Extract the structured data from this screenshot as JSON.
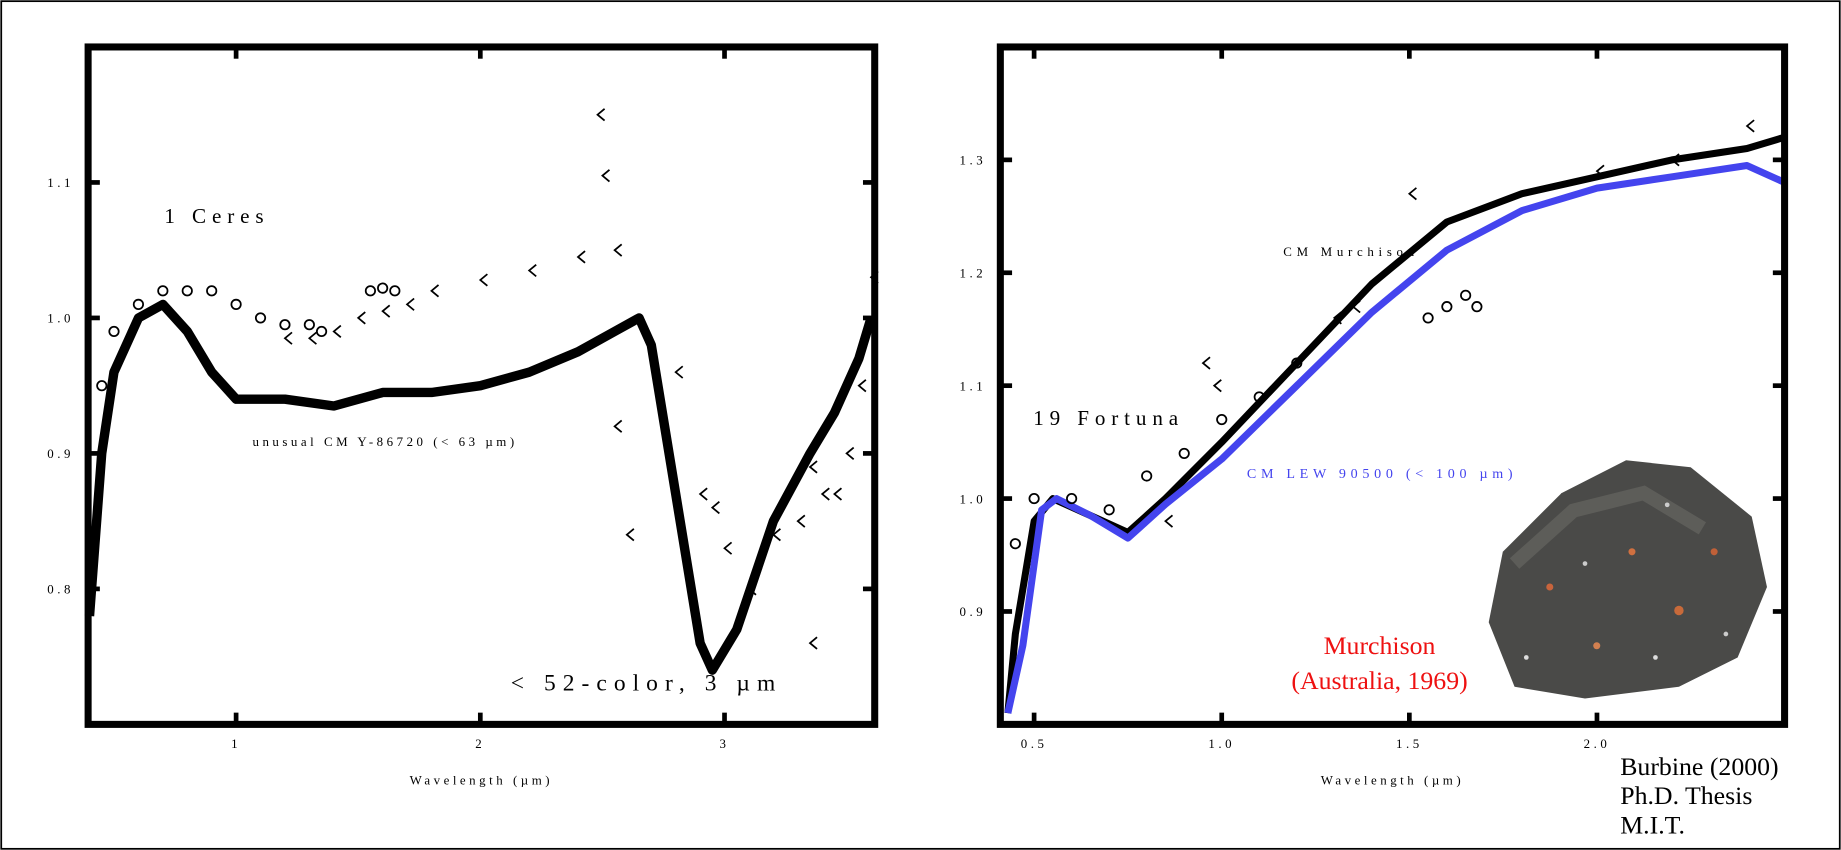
{
  "chart_data": [
    {
      "type": "line",
      "xlabel": "Wavelength (µm)",
      "xlim": [
        0.394,
        3.615
      ],
      "ylim": [
        0.7,
        1.2
      ],
      "xticks": [
        1,
        2,
        3
      ],
      "yticks": [
        0.8,
        0.9,
        {
          "value": 1,
          "label": "1.0"
        },
        1.1
      ],
      "series": [
        {
          "name": "unusual CM Y-86720 (< 63 µm)",
          "color": "#000000",
          "marker": "line",
          "x": [
            0.4,
            0.45,
            0.5,
            0.6,
            0.7,
            0.8,
            0.9,
            1.0,
            1.2,
            1.4,
            1.6,
            1.8,
            2.0,
            2.2,
            2.4,
            2.55,
            2.65,
            2.7,
            2.8,
            2.9,
            2.95,
            3.05,
            3.2,
            3.35,
            3.45,
            3.55,
            3.6
          ],
          "values": [
            0.78,
            0.9,
            0.96,
            1.0,
            1.01,
            0.99,
            0.96,
            0.94,
            0.94,
            0.935,
            0.945,
            0.945,
            0.95,
            0.96,
            0.975,
            0.99,
            1.0,
            0.98,
            0.87,
            0.76,
            0.74,
            0.77,
            0.85,
            0.9,
            0.93,
            0.97,
            1.0
          ]
        },
        {
          "name": "1 Ceres",
          "color": "#000000",
          "marker": "circle",
          "x": [
            0.45,
            0.5,
            0.6,
            0.7,
            0.8,
            0.9,
            1.0,
            1.1,
            1.2,
            1.3,
            1.35,
            1.55,
            1.6,
            1.65
          ],
          "values": [
            0.95,
            0.99,
            1.01,
            1.02,
            1.02,
            1.02,
            1.01,
            1.0,
            0.995,
            0.995,
            0.99,
            1.02,
            1.022,
            1.02
          ]
        },
        {
          "name": "< 52-color, 3 µm",
          "color": "#000000",
          "marker": "arrow",
          "x": [
            1.2,
            1.3,
            1.4,
            1.5,
            1.6,
            1.7,
            1.8,
            2.0,
            2.2,
            2.4,
            2.55,
            2.48,
            2.5,
            2.8,
            2.55,
            2.6,
            2.9,
            2.95,
            3.0,
            3.1,
            3.2,
            3.3,
            3.35,
            3.4,
            3.45,
            3.5,
            3.55,
            3.6,
            3.35
          ],
          "values": [
            0.985,
            0.985,
            0.99,
            1.0,
            1.005,
            1.01,
            1.02,
            1.028,
            1.035,
            1.045,
            1.05,
            1.15,
            1.105,
            0.96,
            0.92,
            0.84,
            0.87,
            0.86,
            0.83,
            0.8,
            0.84,
            0.85,
            0.89,
            0.87,
            0.87,
            0.9,
            0.95,
            1.03,
            0.76
          ]
        }
      ]
    },
    {
      "type": "line",
      "xlabel": "Wavelength (µm)",
      "xlim": [
        0.41,
        2.5
      ],
      "ylim": [
        0.8,
        1.4
      ],
      "xticks": [
        0.5,
        {
          "value": 1,
          "label": "1.0"
        },
        1.5,
        {
          "value": 2,
          "label": "2.0"
        }
      ],
      "yticks": [
        0.9,
        {
          "value": 1,
          "label": "1.0"
        },
        1.1,
        1.2,
        1.3
      ],
      "annotations": [
        "Murchison",
        "(Australia, 1969)"
      ],
      "series": [
        {
          "name": "CM Murchison",
          "color": "#000000",
          "marker": "line",
          "x": [
            0.43,
            0.45,
            0.5,
            0.55,
            0.65,
            0.75,
            0.85,
            1.0,
            1.2,
            1.4,
            1.6,
            1.8,
            2.0,
            2.2,
            2.4,
            2.5
          ],
          "values": [
            0.81,
            0.88,
            0.98,
            1.0,
            0.985,
            0.97,
            1.0,
            1.05,
            1.12,
            1.19,
            1.245,
            1.27,
            1.285,
            1.3,
            1.31,
            1.32
          ]
        },
        {
          "name": "CM LEW 90500 (< 100 µm)",
          "color": "#4444ee",
          "marker": "line",
          "x": [
            0.43,
            0.47,
            0.52,
            0.56,
            0.65,
            0.75,
            0.85,
            1.0,
            1.2,
            1.4,
            1.6,
            1.8,
            2.0,
            2.2,
            2.4,
            2.5
          ],
          "values": [
            0.81,
            0.87,
            0.99,
            1.0,
            0.985,
            0.965,
            0.995,
            1.035,
            1.1,
            1.165,
            1.22,
            1.255,
            1.275,
            1.285,
            1.295,
            1.28
          ]
        },
        {
          "name": "19 Fortuna",
          "color": "#000000",
          "marker": "circle",
          "x": [
            0.45,
            0.5,
            0.6,
            0.7,
            0.8,
            0.9,
            1.0,
            1.1,
            1.2,
            1.55,
            1.6,
            1.65,
            1.68
          ],
          "values": [
            0.96,
            1.0,
            1.0,
            0.99,
            1.02,
            1.04,
            1.07,
            1.09,
            1.12,
            1.16,
            1.17,
            1.18,
            1.17
          ]
        },
        {
          "color": "#000000",
          "marker": "arrow",
          "x": [
            0.85,
            0.95,
            0.98,
            1.3,
            1.35,
            1.5,
            2.0,
            2.2,
            2.4
          ],
          "values": [
            0.98,
            1.12,
            1.1,
            1.16,
            1.17,
            1.27,
            1.29,
            1.3,
            1.33
          ]
        }
      ]
    }
  ],
  "credit": {
    "lines": [
      "Burbine (2000)",
      "Ph.D. Thesis",
      "M.I.T."
    ]
  }
}
